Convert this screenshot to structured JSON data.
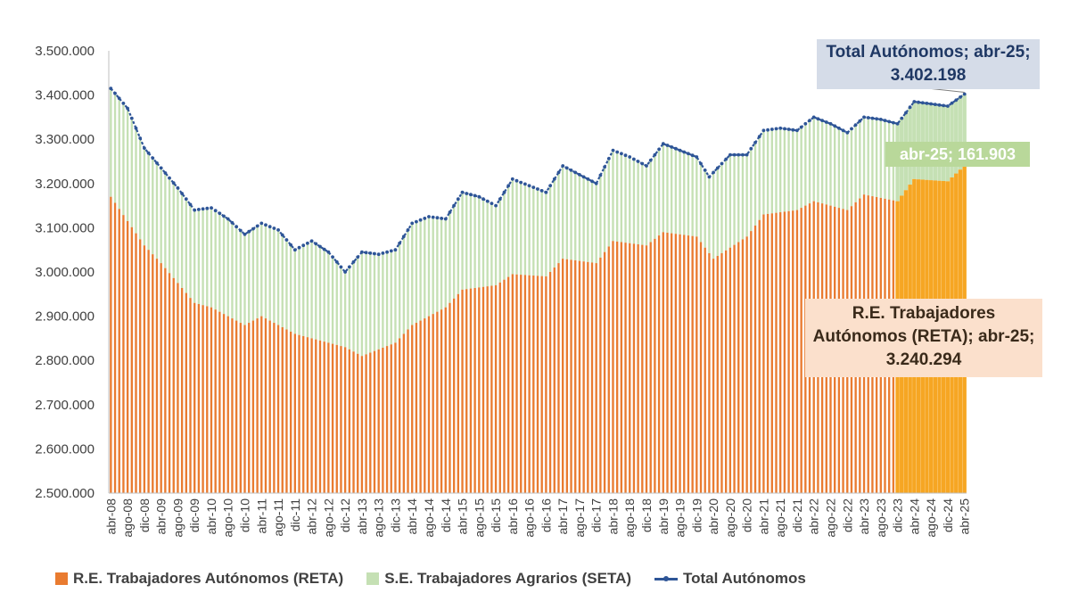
{
  "chart_data": {
    "type": "bar",
    "y_axis": {
      "ylim": [
        2500000,
        3500000
      ],
      "tick_values": [
        2500000,
        2600000,
        2700000,
        2800000,
        2900000,
        3000000,
        3100000,
        3200000,
        3300000,
        3400000,
        3500000
      ],
      "tick_labels": [
        "2.500.000",
        "2.600.000",
        "2.700.000",
        "2.800.000",
        "2.900.000",
        "3.000.000",
        "3.100.000",
        "3.200.000",
        "3.300.000",
        "3.400.000",
        "3.500.000"
      ]
    },
    "x_axis": {
      "start_month": "abr-08",
      "end_month": "abr-25",
      "tick_labels": [
        "abr-08",
        "ago-08",
        "dic-08",
        "abr-09",
        "ago-09",
        "dic-09",
        "abr-10",
        "ago-10",
        "dic-10",
        "abr-11",
        "ago-11",
        "dic-11",
        "abr-12",
        "ago-12",
        "dic-12",
        "abr-13",
        "ago-13",
        "dic-13",
        "abr-14",
        "ago-14",
        "dic-14",
        "abr-15",
        "ago-15",
        "dic-15",
        "abr-16",
        "ago-16",
        "dic-16",
        "abr-17",
        "ago-17",
        "dic-17",
        "abr-18",
        "ago-18",
        "dic-18",
        "abr-19",
        "ago-19",
        "dic-19",
        "abr-20",
        "ago-20",
        "dic-20",
        "abr-21",
        "ago-21",
        "dic-21",
        "abr-22",
        "ago-22",
        "dic-22",
        "abr-23",
        "ago-23",
        "dic-23",
        "abr-24",
        "ago-24",
        "dic-24",
        "abr-25"
      ]
    },
    "series": [
      {
        "name": "R.E. Trabajadores Autónomos (RETA)",
        "kind": "bar",
        "color": "#e97b30",
        "highlight_color": "#f6a623",
        "anchors": [
          {
            "month": "abr-08",
            "value": 3170000
          },
          {
            "month": "dic-08",
            "value": 3060000
          },
          {
            "month": "abr-09",
            "value": 3020000
          },
          {
            "month": "dic-09",
            "value": 2930000
          },
          {
            "month": "abr-10",
            "value": 2920000
          },
          {
            "month": "dic-10",
            "value": 2880000
          },
          {
            "month": "abr-11",
            "value": 2900000
          },
          {
            "month": "dic-11",
            "value": 2860000
          },
          {
            "month": "abr-12",
            "value": 2850000
          },
          {
            "month": "dic-12",
            "value": 2830000
          },
          {
            "month": "abr-13",
            "value": 2810000
          },
          {
            "month": "dic-13",
            "value": 2840000
          },
          {
            "month": "abr-14",
            "value": 2880000
          },
          {
            "month": "dic-14",
            "value": 2920000
          },
          {
            "month": "abr-15",
            "value": 2960000
          },
          {
            "month": "dic-15",
            "value": 2970000
          },
          {
            "month": "abr-16",
            "value": 2995000
          },
          {
            "month": "dic-16",
            "value": 2990000
          },
          {
            "month": "abr-17",
            "value": 3030000
          },
          {
            "month": "dic-17",
            "value": 3020000
          },
          {
            "month": "abr-18",
            "value": 3070000
          },
          {
            "month": "dic-18",
            "value": 3060000
          },
          {
            "month": "abr-19",
            "value": 3090000
          },
          {
            "month": "dic-19",
            "value": 3080000
          },
          {
            "month": "abr-20",
            "value": 3030000
          },
          {
            "month": "dic-20",
            "value": 3080000
          },
          {
            "month": "abr-21",
            "value": 3130000
          },
          {
            "month": "dic-21",
            "value": 3140000
          },
          {
            "month": "abr-22",
            "value": 3160000
          },
          {
            "month": "dic-22",
            "value": 3140000
          },
          {
            "month": "abr-23",
            "value": 3175000
          },
          {
            "month": "dic-23",
            "value": 3160000
          },
          {
            "month": "abr-24",
            "value": 3210000
          },
          {
            "month": "dic-24",
            "value": 3205000
          },
          {
            "month": "abr-25",
            "value": 3240294
          }
        ]
      },
      {
        "name": "S.E. Trabajadores Agrarios (SETA)",
        "kind": "stacked-bar",
        "color": "#c5e0b4"
      },
      {
        "name": "Total Autónomos",
        "kind": "line",
        "color": "#2e5597",
        "anchors": [
          {
            "month": "abr-08",
            "value": 3415000
          },
          {
            "month": "ago-08",
            "value": 3370000
          },
          {
            "month": "dic-08",
            "value": 3280000
          },
          {
            "month": "abr-09",
            "value": 3235000
          },
          {
            "month": "ago-09",
            "value": 3190000
          },
          {
            "month": "dic-09",
            "value": 3140000
          },
          {
            "month": "abr-10",
            "value": 3145000
          },
          {
            "month": "ago-10",
            "value": 3120000
          },
          {
            "month": "dic-10",
            "value": 3085000
          },
          {
            "month": "abr-11",
            "value": 3110000
          },
          {
            "month": "ago-11",
            "value": 3095000
          },
          {
            "month": "dic-11",
            "value": 3050000
          },
          {
            "month": "abr-12",
            "value": 3070000
          },
          {
            "month": "ago-12",
            "value": 3045000
          },
          {
            "month": "dic-12",
            "value": 3000000
          },
          {
            "month": "abr-13",
            "value": 3045000
          },
          {
            "month": "ago-13",
            "value": 3040000
          },
          {
            "month": "dic-13",
            "value": 3050000
          },
          {
            "month": "abr-14",
            "value": 3110000
          },
          {
            "month": "ago-14",
            "value": 3125000
          },
          {
            "month": "dic-14",
            "value": 3120000
          },
          {
            "month": "abr-15",
            "value": 3180000
          },
          {
            "month": "ago-15",
            "value": 3170000
          },
          {
            "month": "dic-15",
            "value": 3150000
          },
          {
            "month": "abr-16",
            "value": 3210000
          },
          {
            "month": "ago-16",
            "value": 3195000
          },
          {
            "month": "dic-16",
            "value": 3180000
          },
          {
            "month": "abr-17",
            "value": 3240000
          },
          {
            "month": "ago-17",
            "value": 3220000
          },
          {
            "month": "dic-17",
            "value": 3200000
          },
          {
            "month": "abr-18",
            "value": 3275000
          },
          {
            "month": "ago-18",
            "value": 3260000
          },
          {
            "month": "dic-18",
            "value": 3240000
          },
          {
            "month": "abr-19",
            "value": 3290000
          },
          {
            "month": "ago-19",
            "value": 3275000
          },
          {
            "month": "dic-19",
            "value": 3260000
          },
          {
            "month": "mar-20",
            "value": 3215000
          },
          {
            "month": "abr-20",
            "value": 3225000
          },
          {
            "month": "ago-20",
            "value": 3265000
          },
          {
            "month": "dic-20",
            "value": 3265000
          },
          {
            "month": "abr-21",
            "value": 3320000
          },
          {
            "month": "ago-21",
            "value": 3325000
          },
          {
            "month": "dic-21",
            "value": 3320000
          },
          {
            "month": "abr-22",
            "value": 3350000
          },
          {
            "month": "ago-22",
            "value": 3335000
          },
          {
            "month": "dic-22",
            "value": 3315000
          },
          {
            "month": "abr-23",
            "value": 3350000
          },
          {
            "month": "ago-23",
            "value": 3345000
          },
          {
            "month": "dic-23",
            "value": 3335000
          },
          {
            "month": "abr-24",
            "value": 3385000
          },
          {
            "month": "ago-24",
            "value": 3380000
          },
          {
            "month": "dic-24",
            "value": 3375000
          },
          {
            "month": "abr-25",
            "value": 3402198
          }
        ]
      }
    ],
    "highlight_from": "dic-23",
    "legend": "bottom",
    "grid": false,
    "callouts": {
      "total": [
        "Total Autónomos; abr-25;",
        "3.402.198"
      ],
      "seta": [
        "abr-25; 161.903"
      ],
      "reta": [
        "R.E. Trabajadores",
        "Autónomos (RETA); abr-25;",
        "3.240.294"
      ]
    }
  }
}
